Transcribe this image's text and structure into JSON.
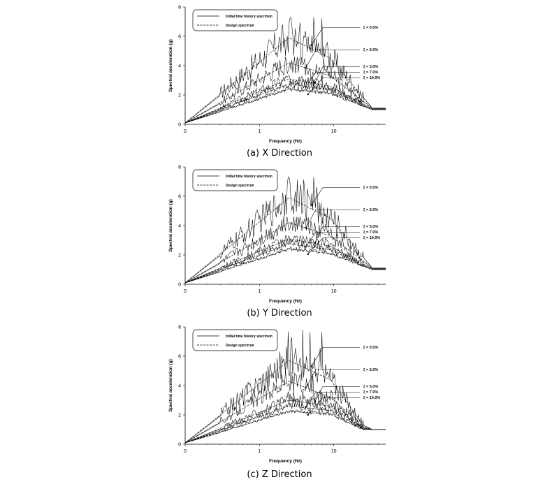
{
  "chart_data": [
    {
      "type": "line",
      "xlabel": "Frequency (Hz)",
      "ylabel": "Spectral acceleration (g)",
      "xscale": "log",
      "xlim": [
        0.1,
        50
      ],
      "ylim": [
        0,
        8
      ],
      "x_ticks": [
        "0",
        "1",
        "10"
      ],
      "y_ticks": [
        "0",
        "2",
        "4",
        "6",
        "8"
      ],
      "grid": false,
      "legend": "top-left",
      "legend_entries": [
        "Initial time history spectrum",
        "Design spectrum"
      ],
      "caption": "(a) X Direction",
      "annotations": [
        {
          "label": "ξ = 0.5%",
          "x": 5.0,
          "y": 5.4
        },
        {
          "label": "ξ = 2.0%",
          "x": 4.2,
          "y": 3.85
        },
        {
          "label": "ξ = 5.0%",
          "x": 5.6,
          "y": 2.85
        },
        {
          "label": "ξ = 7.0%",
          "x": 4.2,
          "y": 2.55
        },
        {
          "label": "ξ = 10.0%",
          "x": 4.5,
          "y": 2.05
        }
      ],
      "series": [
        {
          "damping": "0.5%",
          "design_x": [
            0.1,
            2.5,
            9,
            33,
            50
          ],
          "design_y": [
            0.1,
            5.9,
            4.5,
            1.1,
            1.1
          ],
          "peak": 7.3
        },
        {
          "damping": "2.0%",
          "design_x": [
            0.1,
            2.5,
            9,
            33,
            50
          ],
          "design_y": [
            0.1,
            4.2,
            3.3,
            1.1,
            1.1
          ],
          "peak": 4.6
        },
        {
          "damping": "5.0%",
          "design_x": [
            0.1,
            2.5,
            9,
            33,
            50
          ],
          "design_y": [
            0.1,
            3.1,
            2.6,
            1.05,
            1.05
          ],
          "peak": 3.3
        },
        {
          "damping": "7.0%",
          "design_x": [
            0.1,
            2.5,
            9,
            33,
            50
          ],
          "design_y": [
            0.1,
            2.75,
            2.35,
            1.0,
            1.0
          ],
          "peak": 3.0
        },
        {
          "damping": "10.0%",
          "design_x": [
            0.1,
            2.5,
            9,
            33,
            50
          ],
          "design_y": [
            0.1,
            2.4,
            2.1,
            1.0,
            1.0
          ],
          "peak": 2.6
        }
      ]
    },
    {
      "type": "line",
      "xlabel": "Frequency (Hz)",
      "ylabel": "Spectral acceleration (g)",
      "xscale": "log",
      "xlim": [
        0.1,
        50
      ],
      "ylim": [
        0,
        8
      ],
      "x_ticks": [
        "0",
        "1",
        "10"
      ],
      "y_ticks": [
        "0",
        "2",
        "4",
        "6",
        "8"
      ],
      "grid": false,
      "legend": "top-left",
      "legend_entries": [
        "Initial time history spectrum",
        "Design spectrum"
      ],
      "caption": "(b) Y Direction",
      "annotations": [
        {
          "label": "ξ = 0.5%",
          "x": 5.0,
          "y": 5.4
        },
        {
          "label": "ξ = 2.0%",
          "x": 4.2,
          "y": 3.85
        },
        {
          "label": "ξ = 5.0%",
          "x": 5.6,
          "y": 2.85
        },
        {
          "label": "ξ = 7.0%",
          "x": 4.2,
          "y": 2.55
        },
        {
          "label": "ξ = 10.0%",
          "x": 4.5,
          "y": 2.05
        }
      ],
      "series": [
        {
          "damping": "0.5%",
          "design_x": [
            0.1,
            2.5,
            9,
            33,
            50
          ],
          "design_y": [
            0.1,
            5.9,
            4.5,
            1.1,
            1.1
          ],
          "peak": 7.3
        },
        {
          "damping": "2.0%",
          "design_x": [
            0.1,
            2.5,
            9,
            33,
            50
          ],
          "design_y": [
            0.1,
            4.2,
            3.3,
            1.1,
            1.1
          ],
          "peak": 4.6
        },
        {
          "damping": "5.0%",
          "design_x": [
            0.1,
            2.5,
            9,
            33,
            50
          ],
          "design_y": [
            0.1,
            3.1,
            2.6,
            1.05,
            1.05
          ],
          "peak": 3.3
        },
        {
          "damping": "7.0%",
          "design_x": [
            0.1,
            2.5,
            9,
            33,
            50
          ],
          "design_y": [
            0.1,
            2.75,
            2.35,
            1.0,
            1.0
          ],
          "peak": 3.0
        },
        {
          "damping": "10.0%",
          "design_x": [
            0.1,
            2.5,
            9,
            33,
            50
          ],
          "design_y": [
            0.1,
            2.4,
            2.1,
            1.0,
            1.0
          ],
          "peak": 2.6
        }
      ]
    },
    {
      "type": "line",
      "xlabel": "Frequency (Hz)",
      "ylabel": "Spectral acceleration (g)",
      "xscale": "log",
      "xlim": [
        0.1,
        50
      ],
      "ylim": [
        0,
        8
      ],
      "x_ticks": [
        "0",
        "1",
        "10"
      ],
      "y_ticks": [
        "0",
        "2",
        "4",
        "6",
        "8"
      ],
      "grid": false,
      "legend": "top-left",
      "legend_entries": [
        "Initial time history spectrum",
        "Design spectrum"
      ],
      "caption": "(c) Z Direction",
      "annotations": [
        {
          "label": "ξ = 0.5%",
          "x": 5.0,
          "y": 5.3
        },
        {
          "label": "ξ = 2.0%",
          "x": 4.2,
          "y": 3.85
        },
        {
          "label": "ξ = 5.0%",
          "x": 5.6,
          "y": 2.9
        },
        {
          "label": "ξ = 7.0%",
          "x": 4.2,
          "y": 2.55
        },
        {
          "label": "ξ = 10.0%",
          "x": 4.5,
          "y": 2.0
        }
      ],
      "series": [
        {
          "damping": "0.5%",
          "design_x": [
            0.1,
            2.5,
            9,
            25,
            33,
            50
          ],
          "design_y": [
            0.1,
            5.7,
            4.4,
            1.3,
            1.0,
            1.0
          ],
          "peak": 7.8
        },
        {
          "damping": "2.0%",
          "design_x": [
            0.1,
            2.5,
            9,
            25,
            33,
            50
          ],
          "design_y": [
            0.1,
            4.3,
            3.2,
            1.2,
            1.0,
            1.0
          ],
          "peak": 5.0
        },
        {
          "damping": "5.0%",
          "design_x": [
            0.1,
            2.5,
            9,
            25,
            33,
            50
          ],
          "design_y": [
            0.1,
            3.0,
            2.6,
            1.1,
            1.0,
            1.0
          ],
          "peak": 3.6
        },
        {
          "damping": "7.0%",
          "design_x": [
            0.1,
            2.5,
            9,
            25,
            33,
            50
          ],
          "design_y": [
            0.1,
            2.6,
            2.3,
            1.05,
            1.0,
            1.0
          ],
          "peak": 3.1
        },
        {
          "damping": "10.0%",
          "design_x": [
            0.1,
            2.5,
            9,
            25,
            33,
            50
          ],
          "design_y": [
            0.1,
            2.25,
            2.05,
            1.0,
            1.0,
            1.0
          ],
          "peak": 2.6
        }
      ]
    }
  ]
}
